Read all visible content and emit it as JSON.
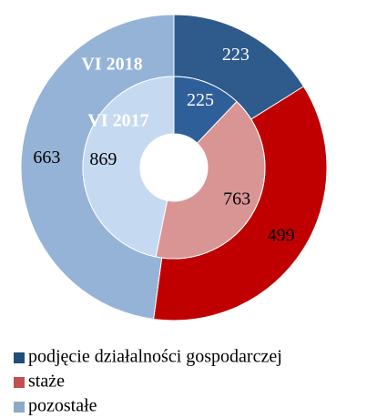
{
  "chart_data": {
    "type": "donut",
    "categories": [
      "podjęcie działalności gospodarczej",
      "staże",
      "pozostałe"
    ],
    "legend_colors": [
      "#1f4e79",
      "#c0504d",
      "#8ea9c8"
    ],
    "series": [
      {
        "name": "VI 2018",
        "values": [
          223,
          499,
          663
        ],
        "colors": [
          "#2e5a8c",
          "#c00000",
          "#95b3d7"
        ],
        "label_colors": [
          "#ffffff",
          "#000000",
          "#000000"
        ]
      },
      {
        "name": "VI 2017",
        "values": [
          225,
          763,
          869
        ],
        "colors": [
          "#2f5f99",
          "#d99594",
          "#c5d9f1"
        ],
        "label_colors": [
          "#ffffff",
          "#000000",
          "#000000"
        ]
      }
    ]
  }
}
